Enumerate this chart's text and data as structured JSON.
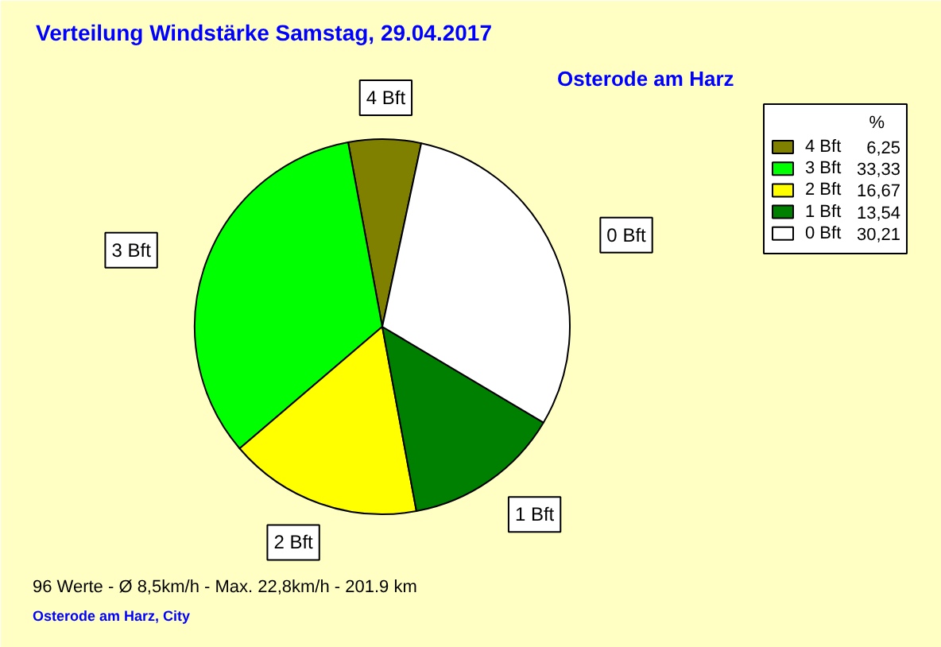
{
  "chart_data": {
    "type": "pie",
    "title": "Verteilung Windstärke  Samstag, 29.04.2017",
    "subtitle": "Osterode am Harz",
    "categories": [
      "4 Bft",
      "3 Bft",
      "2 Bft",
      "1 Bft",
      "0 Bft"
    ],
    "values": [
      6.25,
      33.33,
      16.67,
      13.54,
      30.21
    ],
    "value_labels": [
      "6,25",
      "33,33",
      "16,67",
      "13,54",
      "30,21"
    ],
    "colors": [
      "#808000",
      "#00ff00",
      "#ffff00",
      "#008000",
      "#ffffff"
    ],
    "legend": "top right",
    "legend_title": "%",
    "annotations": [
      "96 Werte   -   Ø 8,5km/h  -  Max. 22,8km/h   -   201.9 km",
      "Osterode am Harz, City"
    ]
  }
}
